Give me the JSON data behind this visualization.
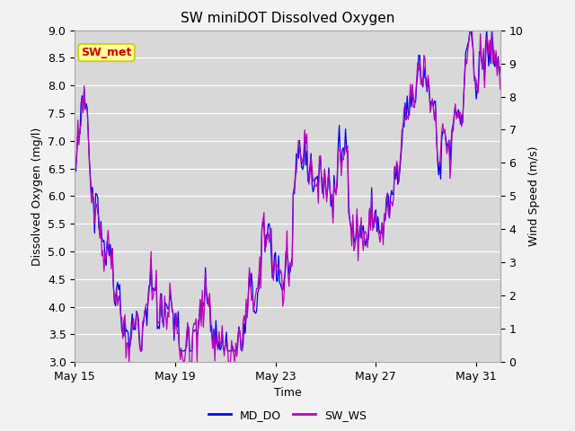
{
  "title": "SW miniDOT Dissolved Oxygen",
  "ylabel_left": "Dissolved Oxygen (mg/l)",
  "ylabel_right": "Wind Speed (m/s)",
  "xlabel": "Time",
  "ylim_left": [
    3.0,
    9.0
  ],
  "ylim_right": [
    0.0,
    10.0
  ],
  "yticks_left": [
    3.0,
    3.5,
    4.0,
    4.5,
    5.0,
    5.5,
    6.0,
    6.5,
    7.0,
    7.5,
    8.0,
    8.5,
    9.0
  ],
  "yticks_right": [
    0.0,
    1.0,
    2.0,
    3.0,
    4.0,
    5.0,
    6.0,
    7.0,
    8.0,
    9.0,
    10.0
  ],
  "xtick_labels": [
    "May 15",
    "May 19",
    "May 23",
    "May 27",
    "May 31"
  ],
  "xtick_positions": [
    0,
    96,
    192,
    288,
    384
  ],
  "legend_labels": [
    "MD_DO",
    "SW_WS"
  ],
  "line_color_do": "#0000ee",
  "line_color_ws": "#bb00bb",
  "background_color": "#f2f2f2",
  "plot_bg_color": "#d8d8d8",
  "grid_color": "#ffffff",
  "box_facecolor": "#ffff99",
  "box_edgecolor": "#cccc00",
  "box_text": "SW_met",
  "box_text_color": "#cc0000",
  "n_points": 408,
  "seed": 42
}
